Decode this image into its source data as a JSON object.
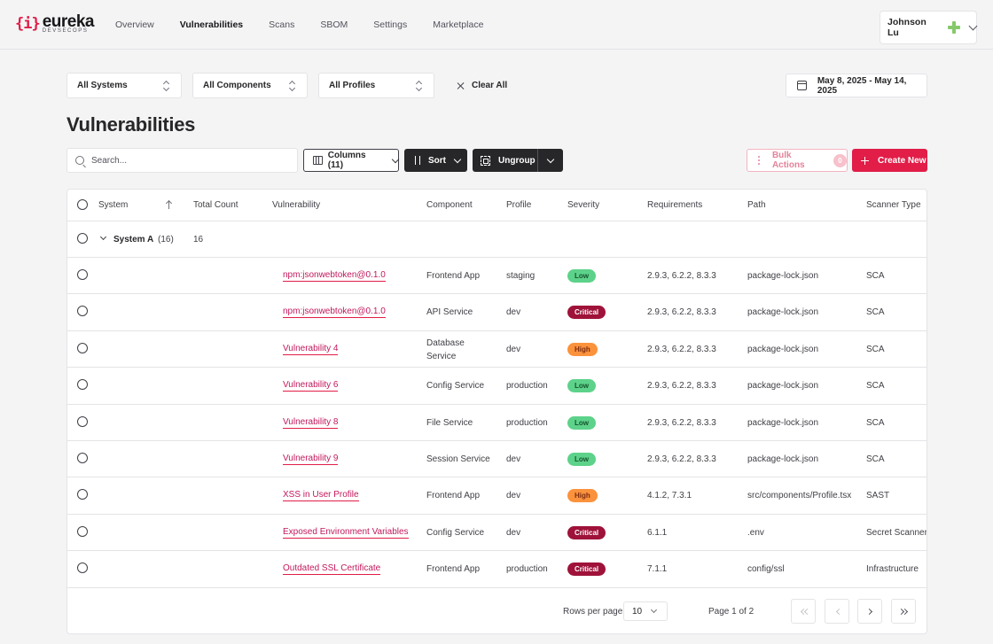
{
  "app": {
    "logo_mark": "{i}",
    "logo_name": "eureka",
    "logo_sub": "DEVSECOPS"
  },
  "nav": {
    "items": [
      {
        "label": "Overview"
      },
      {
        "label": "Vulnerabilities",
        "active": true
      },
      {
        "label": "Scans"
      },
      {
        "label": "SBOM"
      },
      {
        "label": "Settings"
      },
      {
        "label": "Marketplace"
      }
    ]
  },
  "user": {
    "name": "Johnson Lu",
    "icon": "plus-badge-icon"
  },
  "filters": {
    "systems": "All Systems",
    "components": "All Components",
    "profiles": "All Profiles",
    "clear_all": "Clear All",
    "date_range": "May 8, 2025 - May 14, 2025"
  },
  "page": {
    "title": "Vulnerabilities"
  },
  "toolbar": {
    "search_placeholder": "Search...",
    "columns": "Columns (11)",
    "sort": "Sort",
    "ungroup": "Ungroup",
    "bulk_actions": "Bulk Actions",
    "bulk_count": "0",
    "create_new": "Create New"
  },
  "table": {
    "headers": {
      "system": "System",
      "total_count": "Total Count",
      "vulnerability": "Vulnerability",
      "component": "Component",
      "profile": "Profile",
      "severity": "Severity",
      "requirements": "Requirements",
      "path": "Path",
      "scanner_type": "Scanner Type"
    },
    "group": {
      "name": "System A",
      "count_label": "(16)",
      "total": "16"
    },
    "rows": [
      {
        "vulnerability": "npm:jsonwebtoken@0.1.0",
        "component": "Frontend App",
        "profile": "staging",
        "severity": "Low",
        "requirements": "2.9.3, 6.2.2, 8.3.3",
        "path": "package-lock.json",
        "scanner": "SCA"
      },
      {
        "vulnerability": "npm:jsonwebtoken@0.1.0",
        "component": "API Service",
        "profile": "dev",
        "severity": "Critical",
        "requirements": "2.9.3, 6.2.2, 8.3.3",
        "path": "package-lock.json",
        "scanner": "SCA"
      },
      {
        "vulnerability": "Vulnerability 4",
        "component": "Database",
        "component_line2": "Service",
        "profile": "dev",
        "severity": "High",
        "requirements": "2.9.3, 6.2.2, 8.3.3",
        "path": "package-lock.json",
        "scanner": "SCA"
      },
      {
        "vulnerability": "Vulnerability 6",
        "component": "Config Service",
        "profile": "production",
        "severity": "Low",
        "requirements": "2.9.3, 6.2.2, 8.3.3",
        "path": "package-lock.json",
        "scanner": "SCA"
      },
      {
        "vulnerability": "Vulnerability 8",
        "component": "File Service",
        "profile": "production",
        "severity": "Low",
        "requirements": "2.9.3, 6.2.2, 8.3.3",
        "path": "package-lock.json",
        "scanner": "SCA"
      },
      {
        "vulnerability": "Vulnerability 9",
        "component": "Session Service",
        "profile": "dev",
        "severity": "Low",
        "requirements": "2.9.3, 6.2.2, 8.3.3",
        "path": "package-lock.json",
        "scanner": "SCA"
      },
      {
        "vulnerability": "XSS in User Profile",
        "component": "Frontend App",
        "profile": "dev",
        "severity": "High",
        "requirements": "4.1.2, 7.3.1",
        "path": "src/components/Profile.tsx",
        "scanner": "SAST"
      },
      {
        "vulnerability": "Exposed Environment Variables",
        "component": "Config Service",
        "profile": "dev",
        "severity": "Critical",
        "requirements": "6.1.1",
        "path": ".env",
        "scanner": "Secret Scanner"
      },
      {
        "vulnerability": "Outdated SSL Certificate",
        "component": "Frontend App",
        "profile": "production",
        "severity": "Critical",
        "requirements": "7.1.1",
        "path": "config/ssl",
        "scanner": "Infrastructure"
      }
    ]
  },
  "pagination": {
    "rows_per_page_label": "Rows per page:",
    "rows_per_page": "10",
    "page_info": "Page 1 of 2"
  },
  "colors": {
    "accent": "#e11d48",
    "link": "#c2185b",
    "low": "#5dd28a",
    "high": "#fb923c",
    "critical": "#9f1239"
  }
}
